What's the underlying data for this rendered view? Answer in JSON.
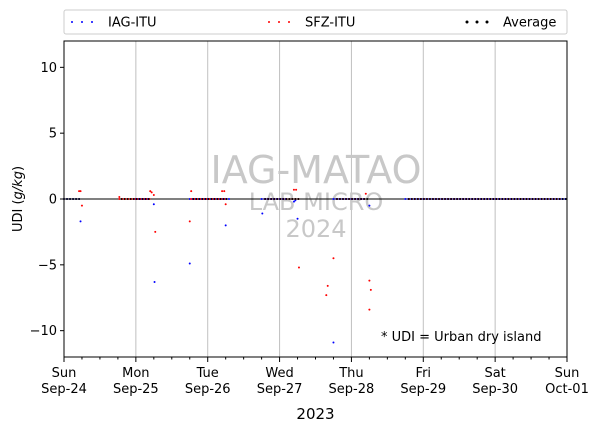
{
  "chart_data": {
    "type": "scatter",
    "xlabel": "2023",
    "ylabel_main": "UDI (",
    "ylabel_unit": "g/kg",
    "ylabel_close": ")",
    "ylim": [
      -12,
      12
    ],
    "yticks": [
      -10,
      -5,
      0,
      5,
      10
    ],
    "xlim": [
      0,
      7
    ],
    "xticks": [
      {
        "pos": 0,
        "top": "Sun",
        "bottom": "Sep-24"
      },
      {
        "pos": 1,
        "top": "Mon",
        "bottom": "Sep-25"
      },
      {
        "pos": 2,
        "top": "Tue",
        "bottom": "Sep-26"
      },
      {
        "pos": 3,
        "top": "Wed",
        "bottom": "Sep-27"
      },
      {
        "pos": 4,
        "top": "Thu",
        "bottom": "Sep-28"
      },
      {
        "pos": 5,
        "top": "Fri",
        "bottom": "Sep-29"
      },
      {
        "pos": 6,
        "top": "Sat",
        "bottom": "Sep-30"
      },
      {
        "pos": 7,
        "top": "Sun",
        "bottom": "Oct-01"
      }
    ],
    "vertical_grid": true,
    "zero_line": true,
    "legend_placement": "top, above plot",
    "watermark": [
      "IAG-MATAO",
      "LAB MICRO",
      "2024"
    ],
    "annotation": "* UDI = Urban dry island",
    "series": [
      {
        "name": "IAG-ITU",
        "color": "#0000ff",
        "points": [
          [
            0.23,
            -1.7
          ],
          [
            1.25,
            -0.4
          ],
          [
            1.26,
            -6.3
          ],
          [
            1.75,
            -4.9
          ],
          [
            2.25,
            -2.0
          ],
          [
            2.76,
            -1.1
          ],
          [
            3.2,
            -0.2
          ],
          [
            3.22,
            -0.1
          ],
          [
            3.25,
            -1.5
          ],
          [
            3.75,
            -10.9
          ],
          [
            4.25,
            -0.5
          ]
        ],
        "flat_zero_ranges": [
          [
            0.0,
            0.25
          ],
          [
            1.0,
            1.2
          ],
          [
            1.75,
            2.3
          ],
          [
            2.75,
            3.1
          ],
          [
            3.75,
            4.2
          ],
          [
            4.75,
            7.0
          ]
        ],
        "flat_step": 0.042
      },
      {
        "name": "SFZ-ITU",
        "color": "#ff0000",
        "points": [
          [
            0.21,
            0.6
          ],
          [
            0.23,
            0.6
          ],
          [
            0.25,
            -0.5
          ],
          [
            0.77,
            0.15
          ],
          [
            1.2,
            0.6
          ],
          [
            1.22,
            0.5
          ],
          [
            1.25,
            0.3
          ],
          [
            1.27,
            -2.5
          ],
          [
            1.77,
            0.6
          ],
          [
            1.75,
            -1.7
          ],
          [
            2.2,
            0.6
          ],
          [
            2.23,
            0.6
          ],
          [
            2.25,
            -0.4
          ],
          [
            3.2,
            0.7
          ],
          [
            3.23,
            0.7
          ],
          [
            3.27,
            -5.2
          ],
          [
            3.65,
            -7.3
          ],
          [
            3.67,
            -6.6
          ],
          [
            3.75,
            -4.5
          ],
          [
            4.2,
            0.4
          ],
          [
            4.25,
            -6.2
          ],
          [
            4.27,
            -6.9
          ],
          [
            4.25,
            -8.4
          ]
        ],
        "flat_zero_ranges": [
          [
            0.77,
            1.2
          ],
          [
            1.77,
            2.25
          ],
          [
            2.8,
            3.3
          ],
          [
            3.8,
            4.2
          ],
          [
            4.8,
            6.9
          ]
        ],
        "flat_step": 0.042
      },
      {
        "name": "Average",
        "color": "#000000",
        "points": [],
        "flat_zero_ranges": [
          [
            0.0,
            0.25
          ],
          [
            0.8,
            1.2
          ],
          [
            1.8,
            2.3
          ],
          [
            2.8,
            3.3
          ],
          [
            3.8,
            4.25
          ],
          [
            4.8,
            7.0
          ]
        ],
        "flat_step": 0.042
      }
    ]
  }
}
